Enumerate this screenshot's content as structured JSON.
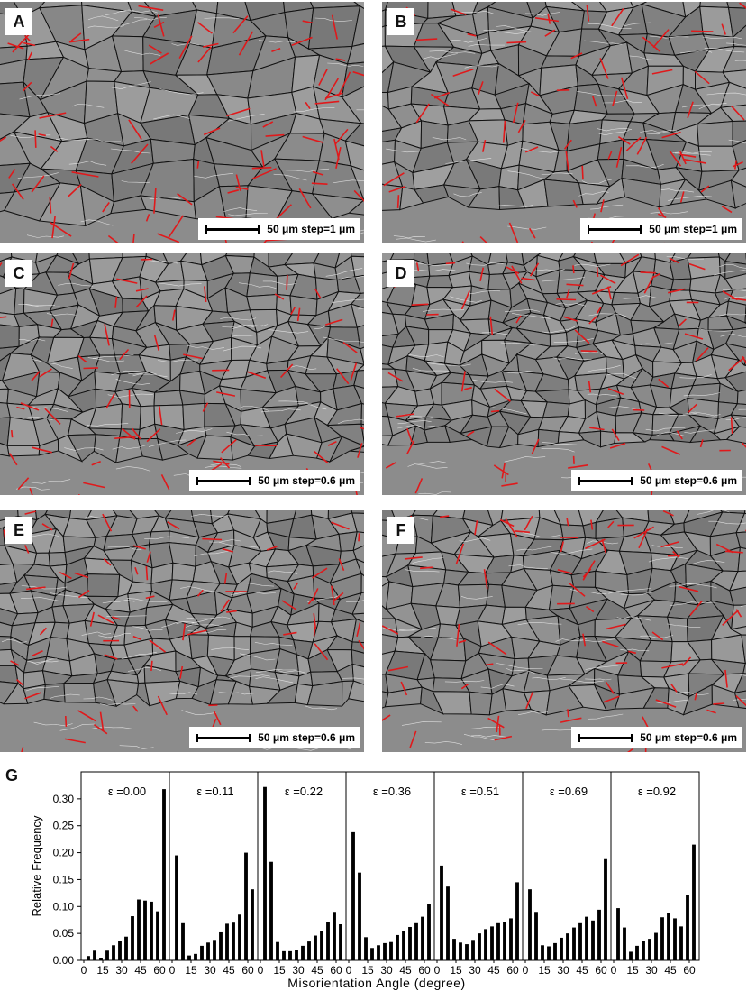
{
  "figure": {
    "panels": [
      {
        "label": "A",
        "scale_text": "50 μm step=1 μm",
        "grain_density": 0.35,
        "twin_density": 1.0
      },
      {
        "label": "B",
        "scale_text": "50 μm step=1 μm",
        "grain_density": 0.65,
        "twin_density": 0.8
      },
      {
        "label": "C",
        "scale_text": "50 μm step=0.6 μm",
        "grain_density": 0.8,
        "twin_density": 0.7
      },
      {
        "label": "D",
        "scale_text": "50 μm step=0.6 μm",
        "grain_density": 0.9,
        "twin_density": 0.9
      },
      {
        "label": "E",
        "scale_text": "50 μm step=0.6 μm",
        "grain_density": 0.85,
        "twin_density": 0.8
      },
      {
        "label": "F",
        "scale_text": "50 μm step=0.6 μm",
        "grain_density": 0.75,
        "twin_density": 0.9
      }
    ],
    "panel_g_label": "G",
    "colors": {
      "grain_fill": "#8c8c8c",
      "high_angle_boundary": "#111111",
      "twin_boundary": "#e0191b",
      "low_angle_boundary": "#f2f2f2",
      "bar": "#000000"
    }
  },
  "chart_data": {
    "type": "bar",
    "ylabel": "Relative Frequency",
    "xlabel": "Misorientation Angle (degree)",
    "ylim": [
      0,
      0.35
    ],
    "yticks": [
      "0.00",
      "0.05",
      "0.10",
      "0.15",
      "0.20",
      "0.25",
      "0.30"
    ],
    "xtick_labels": [
      "0",
      "15",
      "30",
      "45",
      "60"
    ],
    "bins": [
      5,
      10,
      15,
      20,
      25,
      30,
      35,
      40,
      45,
      50,
      55,
      60,
      65
    ],
    "series": [
      {
        "name": "ε =0.00",
        "values": [
          0.008,
          0.018,
          0.005,
          0.018,
          0.028,
          0.036,
          0.044,
          0.082,
          0.113,
          0.111,
          0.109,
          0.091,
          0.318
        ]
      },
      {
        "name": "ε =0.11",
        "values": [
          0.195,
          0.069,
          0.009,
          0.012,
          0.027,
          0.033,
          0.038,
          0.052,
          0.068,
          0.07,
          0.085,
          0.2,
          0.132
        ]
      },
      {
        "name": "ε =0.22",
        "values": [
          0.322,
          0.183,
          0.034,
          0.017,
          0.017,
          0.02,
          0.027,
          0.035,
          0.046,
          0.055,
          0.072,
          0.09,
          0.067
        ]
      },
      {
        "name": "ε =0.36",
        "values": [
          0.238,
          0.163,
          0.043,
          0.023,
          0.028,
          0.032,
          0.034,
          0.047,
          0.054,
          0.062,
          0.069,
          0.081,
          0.104
        ]
      },
      {
        "name": "ε =0.51",
        "values": [
          0.176,
          0.137,
          0.04,
          0.033,
          0.03,
          0.038,
          0.05,
          0.058,
          0.063,
          0.069,
          0.072,
          0.078,
          0.145
        ]
      },
      {
        "name": "ε =0.69",
        "values": [
          0.132,
          0.09,
          0.028,
          0.026,
          0.032,
          0.042,
          0.05,
          0.061,
          0.069,
          0.081,
          0.074,
          0.094,
          0.188
        ]
      },
      {
        "name": "ε =0.92",
        "values": [
          0.097,
          0.061,
          0.016,
          0.027,
          0.036,
          0.04,
          0.051,
          0.08,
          0.088,
          0.078,
          0.063,
          0.122,
          0.215
        ]
      }
    ]
  }
}
